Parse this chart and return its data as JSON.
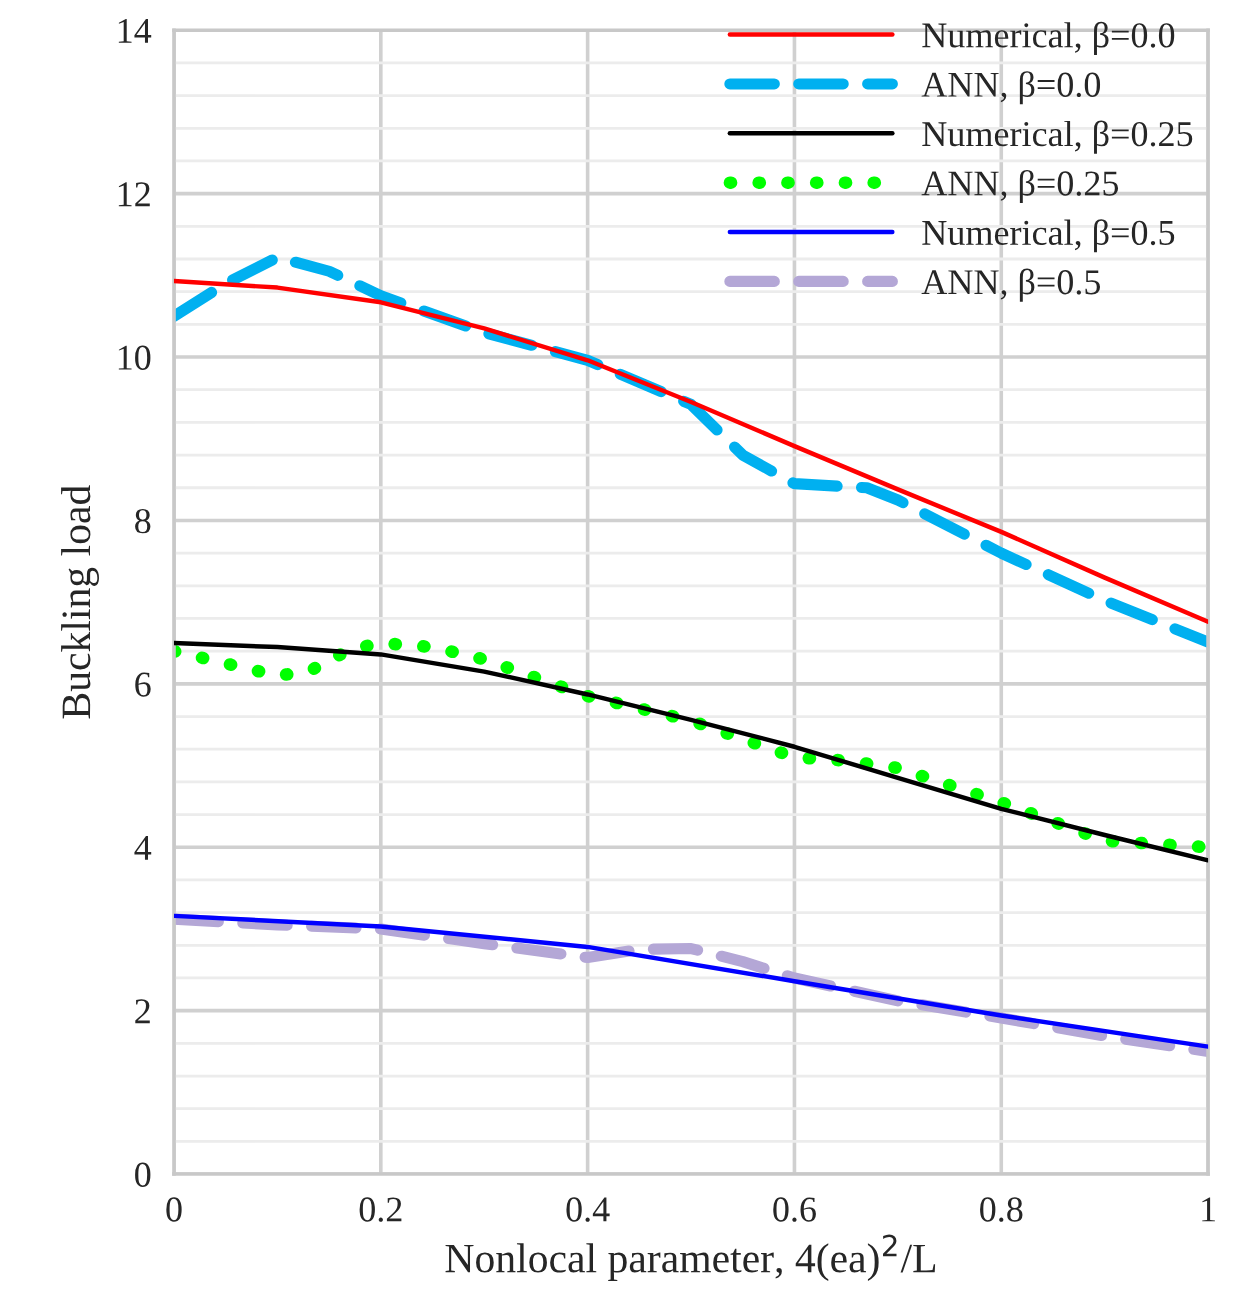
{
  "chart_data": {
    "type": "line",
    "xlabel": "Nonlocal parameter, 4(ea)$^{2}$/L",
    "ylabel": "Buckling load",
    "xlim": [
      0,
      1
    ],
    "xticks": [
      0,
      0.2,
      0.4,
      0.6,
      0.8,
      1
    ],
    "ylim": [
      0,
      14
    ],
    "yticks": [
      0,
      2,
      4,
      6,
      8,
      10,
      12,
      14
    ],
    "grid": true,
    "legend": "top right",
    "series": [
      {
        "name": "Numerical, β=0.0",
        "color": "#ff0000",
        "line_style": "solid",
        "x": [
          0,
          0.1,
          0.2,
          0.3,
          0.4,
          0.5,
          0.6,
          0.7,
          0.8,
          0.9,
          1.0
        ],
        "values": [
          10.93,
          10.85,
          10.67,
          10.35,
          9.96,
          9.45,
          8.91,
          8.38,
          7.86,
          7.3,
          6.76
        ]
      },
      {
        "name": "ANN, β=0.0",
        "color": "#00b0f0",
        "line_style": "dashed",
        "x": [
          0,
          0.05,
          0.1,
          0.15,
          0.2,
          0.3,
          0.4,
          0.5,
          0.55,
          0.6,
          0.67,
          0.7,
          0.8,
          0.9,
          1.0
        ],
        "values": [
          10.5,
          10.9,
          11.22,
          11.05,
          10.75,
          10.3,
          9.96,
          9.42,
          8.8,
          8.45,
          8.4,
          8.25,
          7.6,
          7.02,
          6.51
        ]
      },
      {
        "name": "Numerical, β=0.25",
        "color": "#000000",
        "line_style": "solid",
        "x": [
          0,
          0.1,
          0.2,
          0.3,
          0.4,
          0.5,
          0.6,
          0.7,
          0.8,
          0.9,
          1.0
        ],
        "values": [
          6.5,
          6.45,
          6.36,
          6.15,
          5.87,
          5.56,
          5.23,
          4.85,
          4.47,
          4.15,
          3.84
        ]
      },
      {
        "name": "ANN, β=0.25",
        "color": "#00ff00",
        "line_style": "dotted",
        "x": [
          0,
          0.05,
          0.1,
          0.13,
          0.17,
          0.2,
          0.25,
          0.3,
          0.4,
          0.5,
          0.6,
          0.65,
          0.7,
          0.8,
          0.9,
          1.0
        ],
        "values": [
          6.4,
          6.25,
          6.1,
          6.15,
          6.42,
          6.5,
          6.45,
          6.3,
          5.85,
          5.55,
          5.1,
          5.06,
          4.97,
          4.55,
          4.08,
          4.0
        ]
      },
      {
        "name": "Numerical, β=0.5",
        "color": "#0000ff",
        "line_style": "solid",
        "x": [
          0,
          0.2,
          0.4,
          0.6,
          0.8,
          1.0
        ],
        "values": [
          3.16,
          3.03,
          2.78,
          2.36,
          1.94,
          1.56
        ]
      },
      {
        "name": "ANN, β=0.5",
        "color": "#b4a7d6",
        "line_style": "dashed",
        "x": [
          0,
          0.1,
          0.2,
          0.3,
          0.4,
          0.45,
          0.5,
          0.55,
          0.6,
          0.7,
          0.8,
          0.9,
          1.0
        ],
        "values": [
          3.12,
          3.05,
          3.0,
          2.82,
          2.65,
          2.75,
          2.76,
          2.6,
          2.4,
          2.12,
          1.91,
          1.69,
          1.5
        ]
      }
    ]
  }
}
